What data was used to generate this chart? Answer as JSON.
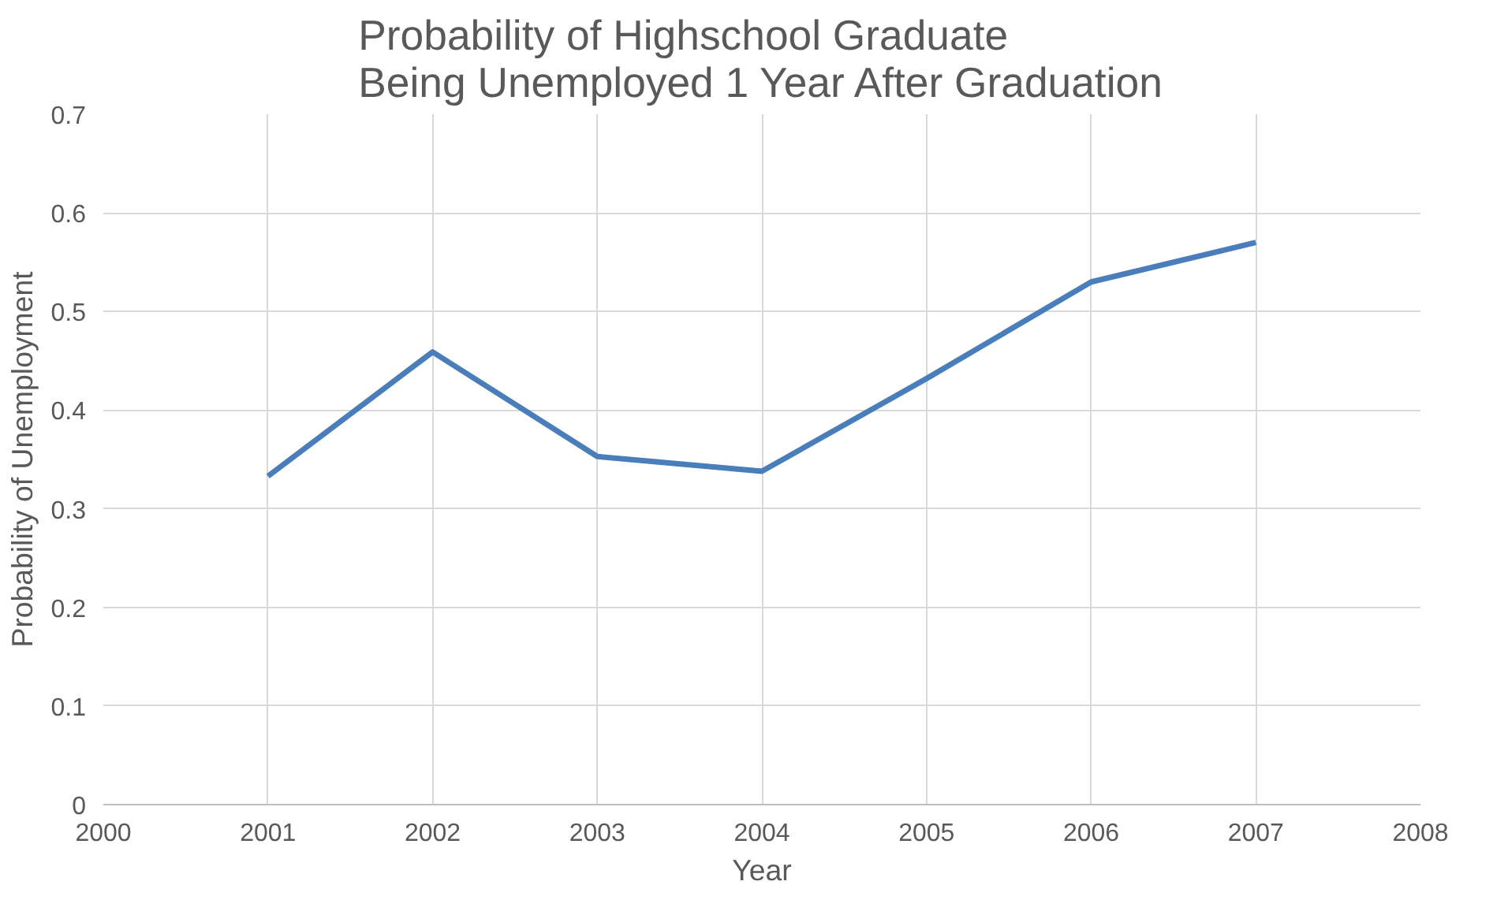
{
  "chart_data": {
    "type": "line",
    "title": "Probability of Highschool Graduate Being Unemployed 1 Year After Graduation",
    "xlabel": "Year",
    "ylabel": "Probability of Unemployment",
    "x": [
      2001,
      2002,
      2003,
      2004,
      2005,
      2006,
      2007
    ],
    "series": [
      {
        "color": "#4a7ebb",
        "values": [
          0.333,
          0.459,
          0.353,
          0.338,
          0.432,
          0.53,
          0.57
        ]
      }
    ],
    "xlim": [
      2000,
      2008
    ],
    "xticks": [
      2000,
      2001,
      2002,
      2003,
      2004,
      2005,
      2006,
      2007,
      2008
    ],
    "ylim": [
      0,
      0.7
    ],
    "yticks": [
      0,
      0.1,
      0.2,
      0.3,
      0.4,
      0.5,
      0.6,
      0.7
    ],
    "grid": true,
    "marker": "none",
    "line_style": "solid"
  }
}
